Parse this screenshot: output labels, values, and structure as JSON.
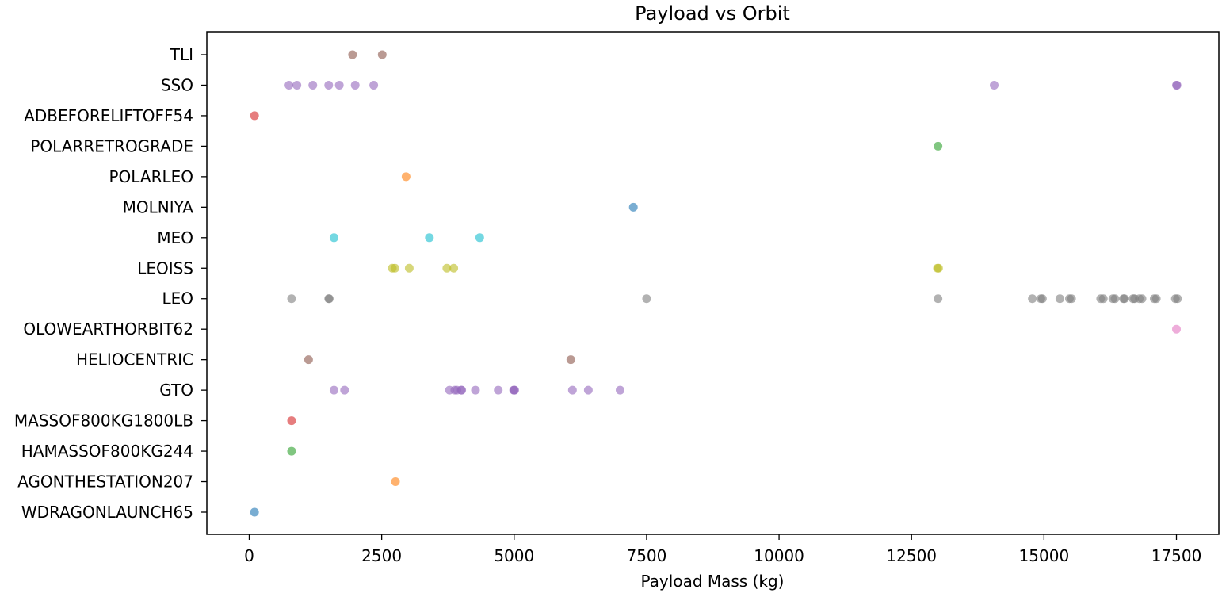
{
  "chart_data": {
    "type": "scatter",
    "title": "Payload vs Orbit",
    "xlabel": "Payload Mass (kg)",
    "ylabel": "",
    "xlim": [
      -800,
      18300
    ],
    "grid": false,
    "legend": "none",
    "x_ticks": [
      0,
      2500,
      5000,
      7500,
      10000,
      12500,
      15000,
      17500
    ],
    "categories": [
      "WDRAGONLAUNCH65",
      "AGONTHESTATION207",
      "HAMASSOF800KG244",
      "MASSOF800KG1800LB",
      "GTO",
      "HELIOCENTRIC",
      "OLOWEARTHORBIT62",
      "LEO",
      "LEOISS",
      "MEO",
      "MOLNIYA",
      "POLARLEO",
      "POLARRETROGRADE",
      "ADBEFORELIFTOFF54",
      "SSO",
      "TLI"
    ],
    "series": [
      {
        "color": "#1f77b4",
        "points": [
          [
            0,
            100
          ],
          [
            10,
            7250
          ]
        ]
      },
      {
        "color": "#ff7f0e",
        "points": [
          [
            1,
            2760
          ],
          [
            11,
            2960
          ]
        ]
      },
      {
        "color": "#2ca02c",
        "points": [
          [
            2,
            800
          ],
          [
            12,
            13000
          ]
        ]
      },
      {
        "color": "#d62728",
        "points": [
          [
            3,
            800
          ],
          [
            13,
            100
          ]
        ]
      },
      {
        "color": "#9467bd",
        "points": [
          [
            4,
            1600
          ],
          [
            4,
            1800
          ],
          [
            4,
            3780
          ],
          [
            4,
            3880
          ],
          [
            4,
            3920
          ],
          [
            4,
            4000
          ],
          [
            4,
            4010
          ],
          [
            4,
            4270
          ],
          [
            4,
            4700
          ],
          [
            4,
            4990
          ],
          [
            4,
            5000
          ],
          [
            4,
            5010
          ],
          [
            4,
            6100
          ],
          [
            4,
            6400
          ],
          [
            4,
            7000
          ],
          [
            14,
            750
          ],
          [
            14,
            900
          ],
          [
            14,
            1200
          ],
          [
            14,
            1500
          ],
          [
            14,
            1700
          ],
          [
            14,
            2000
          ],
          [
            14,
            2350
          ],
          [
            14,
            14060
          ],
          [
            14,
            17500
          ],
          [
            14,
            17510
          ]
        ]
      },
      {
        "color": "#8c564b",
        "points": [
          [
            5,
            1120
          ],
          [
            5,
            6070
          ],
          [
            15,
            1950
          ],
          [
            15,
            2510
          ]
        ]
      },
      {
        "color": "#e377c2",
        "points": [
          [
            6,
            17500
          ]
        ]
      },
      {
        "color": "#7f7f7f",
        "points": [
          [
            7,
            800
          ],
          [
            7,
            1500
          ],
          [
            7,
            1510
          ],
          [
            7,
            7500
          ],
          [
            7,
            13000
          ],
          [
            7,
            14780
          ],
          [
            7,
            14940
          ],
          [
            7,
            14970
          ],
          [
            7,
            15300
          ],
          [
            7,
            15480
          ],
          [
            7,
            15520
          ],
          [
            7,
            16070
          ],
          [
            7,
            16120
          ],
          [
            7,
            16300
          ],
          [
            7,
            16340
          ],
          [
            7,
            16500
          ],
          [
            7,
            16520
          ],
          [
            7,
            16680
          ],
          [
            7,
            16710
          ],
          [
            7,
            16800
          ],
          [
            7,
            16850
          ],
          [
            7,
            17080
          ],
          [
            7,
            17120
          ],
          [
            7,
            17480
          ],
          [
            7,
            17520
          ]
        ]
      },
      {
        "color": "#bcbd22",
        "points": [
          [
            8,
            2700
          ],
          [
            8,
            2750
          ],
          [
            8,
            3020
          ],
          [
            8,
            3730
          ],
          [
            8,
            3860
          ],
          [
            8,
            12990
          ],
          [
            8,
            13010
          ]
        ]
      },
      {
        "color": "#17becf",
        "points": [
          [
            9,
            1600
          ],
          [
            9,
            3400
          ],
          [
            9,
            4350
          ]
        ]
      }
    ]
  }
}
